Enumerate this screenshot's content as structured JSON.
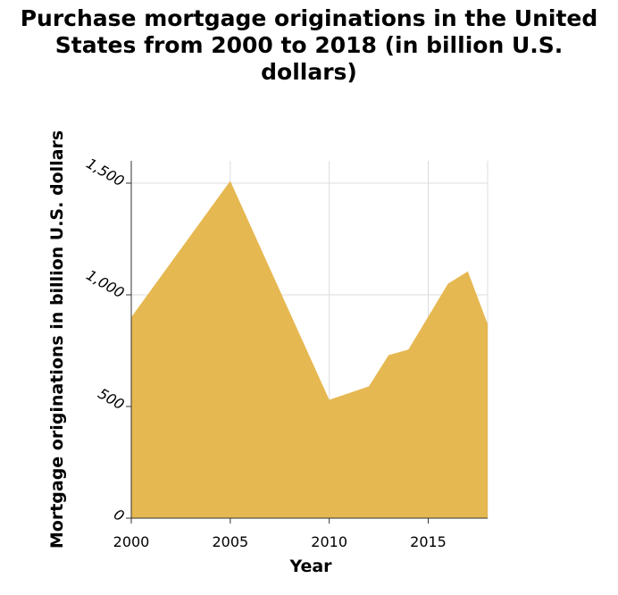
{
  "chart_data": {
    "type": "area",
    "title_lines": [
      "Purchase mortgage originations in the United",
      "States from 2000 to 2018 (in billion U.S.",
      "dollars)"
    ],
    "xlabel": "Year",
    "ylabel": "Mortgage originations in billion U.S. dollars",
    "xlim": [
      2000,
      2018
    ],
    "ylim": [
      0,
      1500
    ],
    "x_ticks": [
      2000,
      2005,
      2010,
      2015
    ],
    "y_ticks": [
      0,
      500,
      1000,
      1500
    ],
    "x_tick_labels": [
      "2000",
      "2005",
      "2010",
      "2015"
    ],
    "y_tick_labels": [
      "0",
      "500",
      "1,000",
      "1,500"
    ],
    "grid": true,
    "fill_color": "#e6b851",
    "series": [
      {
        "x": [
          2000,
          2005,
          2010,
          2012,
          2013,
          2014,
          2016,
          2017,
          2018
        ],
        "y": [
          900,
          1510,
          530,
          590,
          730,
          755,
          1050,
          1105,
          870
        ]
      }
    ]
  }
}
